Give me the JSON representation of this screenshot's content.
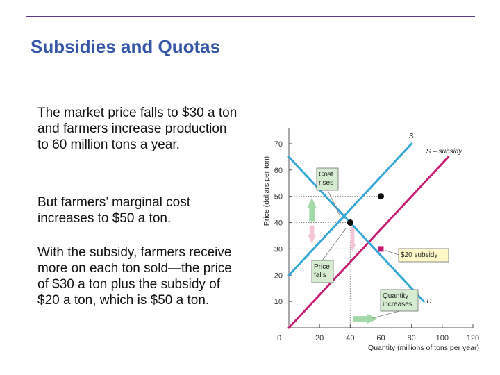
{
  "slide": {
    "title": "Subsidies and Quotas",
    "paragraphs": [
      "The market price falls to $30 a ton and farmers increase production to 60 million tons a year.",
      "But farmers’ marginal cost increases to $50 a ton.",
      "With the subsidy, farmers receive more on each ton sold—the price of $30 a ton plus the subsidy of $20 a ton, which is $50 a ton."
    ]
  },
  "chart_data": {
    "type": "line",
    "xlabel": "Quantity (millions of tons per year)",
    "ylabel": "Price (dollars per ton)",
    "xlim": [
      0,
      120
    ],
    "ylim": [
      0,
      75
    ],
    "x_ticks": [
      "0",
      "20",
      "40",
      "60",
      "80",
      "100",
      "120"
    ],
    "y_ticks": [
      "10",
      "20",
      "30",
      "40",
      "50",
      "60",
      "70"
    ],
    "highlight_tick": "30",
    "series": [
      {
        "name": "S",
        "points": [
          [
            0,
            20
          ],
          [
            80,
            70
          ]
        ],
        "color": "#35a6d8"
      },
      {
        "name": "S – subsidy",
        "points": [
          [
            0,
            0
          ],
          [
            104,
            65
          ]
        ],
        "color": "#c81c74"
      },
      {
        "name": "D",
        "points": [
          [
            0,
            65
          ],
          [
            88,
            10
          ]
        ],
        "color": "#35a6d8"
      }
    ],
    "equilibria": [
      {
        "x": 40,
        "y": 40,
        "color": "#111111"
      },
      {
        "x": 60,
        "y": 50,
        "color": "#111111"
      },
      {
        "x": 60,
        "y": 30,
        "color": "#c81c74"
      }
    ],
    "annotations": [
      {
        "text": [
          "Cost",
          "rises"
        ],
        "style": "green"
      },
      {
        "text": [
          "Price",
          "falls"
        ],
        "style": "green"
      },
      {
        "text": [
          "$20 subsidy"
        ],
        "style": "yellow"
      },
      {
        "text": [
          "Quantity",
          "increases"
        ],
        "style": "green"
      }
    ],
    "colors": {
      "supply": "#35a6d8",
      "subsidy_supply": "#c81c74",
      "box_green": "#d5ecd0",
      "box_yellow": "#fff8c8",
      "arrow_green": "#a3d9a8",
      "arrow_pink": "#f4c4d8"
    }
  }
}
